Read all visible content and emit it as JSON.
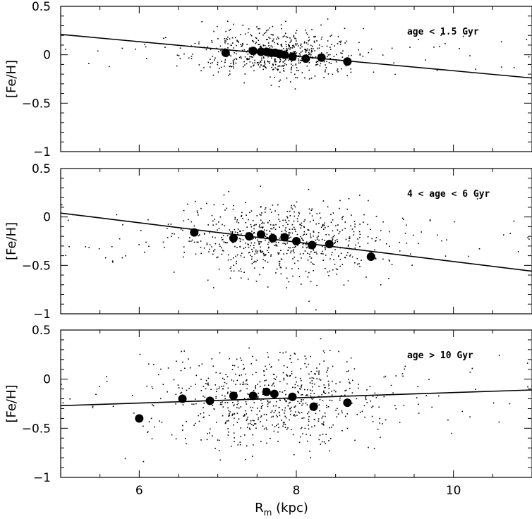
{
  "figure": {
    "x_axis_label_main": "R",
    "x_axis_label_sub": "m",
    "x_axis_label_unit": " (kpc)"
  },
  "chart_data": [
    {
      "type": "scatter",
      "title": "",
      "annotation": "age < 1.5 Gyr",
      "xlabel": "R_m (kpc)",
      "ylabel": "[Fe/H]",
      "xlim": [
        5,
        11
      ],
      "ylim": [
        -1,
        0.5
      ],
      "x_ticks": [
        6,
        8,
        10
      ],
      "y_ticks": [
        0.5,
        0,
        -0.5,
        -1
      ],
      "y_tick_labels": [
        "0.5",
        "0",
        "−0.5",
        "−1"
      ],
      "fit_line": {
        "x": [
          5,
          11
        ],
        "y": [
          0.21,
          -0.24
        ]
      },
      "binned_means": {
        "x": [
          7.1,
          7.45,
          7.55,
          7.62,
          7.68,
          7.73,
          7.78,
          7.85,
          7.95,
          8.12,
          8.32,
          8.65
        ],
        "y": [
          0.02,
          0.04,
          0.03,
          0.03,
          0.02,
          0.02,
          0.01,
          0.0,
          -0.02,
          -0.04,
          -0.03,
          -0.07
        ]
      },
      "scatter_cloud": {
        "count": 620,
        "x_center": 7.75,
        "x_spread": 0.5,
        "y_center": 0.02,
        "y_spread": 0.12
      }
    },
    {
      "type": "scatter",
      "title": "",
      "annotation": "4 < age < 6 Gyr",
      "xlabel": "R_m (kpc)",
      "ylabel": "[Fe/H]",
      "xlim": [
        5,
        11
      ],
      "ylim": [
        -1,
        0.5
      ],
      "x_ticks": [
        6,
        8,
        10
      ],
      "y_ticks": [
        0.5,
        0,
        -0.5,
        -1
      ],
      "y_tick_labels": [
        "0.5",
        "0",
        "−0.5",
        "−1"
      ],
      "fit_line": {
        "x": [
          5,
          11
        ],
        "y": [
          0.04,
          -0.56
        ]
      },
      "binned_means": {
        "x": [
          6.7,
          7.2,
          7.4,
          7.55,
          7.7,
          7.85,
          8.0,
          8.2,
          8.42,
          8.95
        ],
        "y": [
          -0.16,
          -0.22,
          -0.2,
          -0.18,
          -0.22,
          -0.21,
          -0.25,
          -0.29,
          -0.28,
          -0.41
        ]
      },
      "scatter_cloud": {
        "count": 720,
        "x_center": 7.8,
        "x_spread": 0.65,
        "y_center": -0.22,
        "y_spread": 0.2
      }
    },
    {
      "type": "scatter",
      "title": "",
      "annotation": "age > 10 Gyr",
      "xlabel": "R_m (kpc)",
      "ylabel": "[Fe/H]",
      "xlim": [
        5,
        11
      ],
      "ylim": [
        -1,
        0.5
      ],
      "x_ticks": [
        6,
        8,
        10
      ],
      "x_tick_labels": [
        "6",
        "8",
        "10"
      ],
      "y_ticks": [
        0.5,
        0,
        -0.5,
        -1
      ],
      "y_tick_labels": [
        "0.5",
        "0",
        "−0.5",
        "−1"
      ],
      "fit_line": {
        "x": [
          5,
          11
        ],
        "y": [
          -0.27,
          -0.11
        ]
      },
      "binned_means": {
        "x": [
          6.0,
          6.55,
          6.9,
          7.2,
          7.45,
          7.62,
          7.72,
          7.95,
          8.22,
          8.65
        ],
        "y": [
          -0.4,
          -0.2,
          -0.22,
          -0.17,
          -0.17,
          -0.13,
          -0.15,
          -0.18,
          -0.28,
          -0.24
        ]
      },
      "scatter_cloud": {
        "count": 720,
        "x_center": 7.7,
        "x_spread": 0.75,
        "y_center": -0.2,
        "y_spread": 0.24
      }
    }
  ]
}
